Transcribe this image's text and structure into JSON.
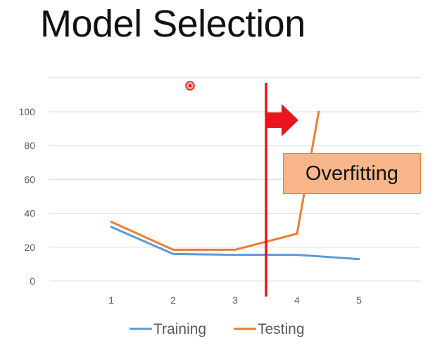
{
  "slide": {
    "title": "Model Selection"
  },
  "annotation": {
    "text": "Overfitting",
    "box_color": "#f8b68a",
    "divider_color": "#e8141e",
    "arrow_color": "#e8141e",
    "divider_x": 3.5
  },
  "chart_data": {
    "type": "line",
    "x": [
      1,
      2,
      3,
      4,
      5
    ],
    "categories": [
      "1",
      "2",
      "3",
      "4",
      "5"
    ],
    "xlim": [
      0,
      6
    ],
    "ylim": [
      0,
      100
    ],
    "yticks": [
      0,
      20,
      40,
      60,
      80,
      100
    ],
    "grid": true,
    "legend_position": "bottom",
    "series": [
      {
        "name": "Training",
        "color": "#5b9bd5",
        "x": [
          1,
          2,
          3,
          4,
          5
        ],
        "values": [
          32,
          16,
          15.5,
          15.5,
          13
        ]
      },
      {
        "name": "Testing",
        "color": "#ed7d31",
        "x": [
          1,
          2,
          3,
          4,
          4.35
        ],
        "values": [
          35,
          18.5,
          18.5,
          28,
          100
        ]
      }
    ]
  }
}
